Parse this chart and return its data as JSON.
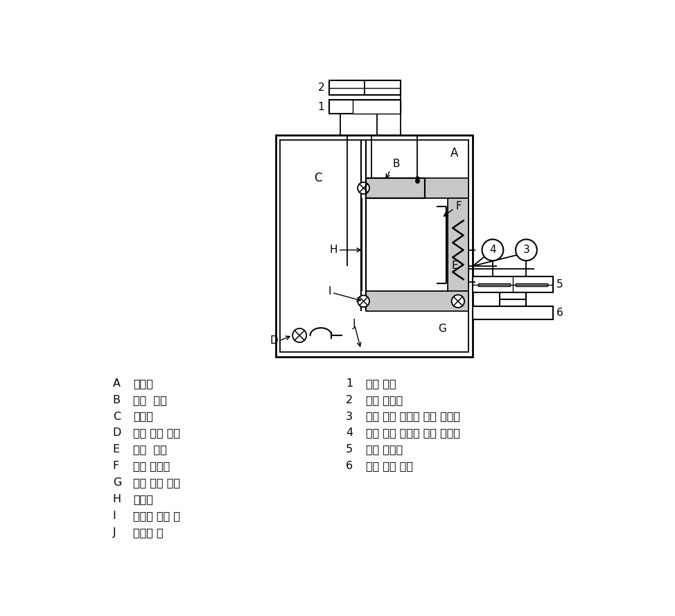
{
  "bg_color": "#ffffff",
  "line_color": "#1a1a1a",
  "dot_fill": "#c8c8c8",
  "legend_left": [
    [
      "A",
      "항온실"
    ],
    [
      "B",
      "가열  상자"
    ],
    [
      "C",
      "저온실"
    ],
    [
      "D",
      "냉풍 취출 장치"
    ],
    [
      "E",
      "가열  장치"
    ],
    [
      "F",
      "복사 차단판"
    ],
    [
      "G",
      "기류 교반 장치"
    ],
    [
      "H",
      "시험체"
    ],
    [
      "I",
      "시험체 부착 틀"
    ],
    [
      "J",
      "칸막이 벽"
    ]
  ],
  "legend_right": [
    [
      "1",
      "기준 점검"
    ],
    [
      "2",
      "온도 측정기"
    ],
    [
      "3",
      "가열 교반 장치용 전력 측정기"
    ],
    [
      "4",
      "가류 교반 장치용 전력 측정기"
    ],
    [
      "5",
      "전력 조정기"
    ],
    [
      "6",
      "전원 안정 장치"
    ]
  ]
}
